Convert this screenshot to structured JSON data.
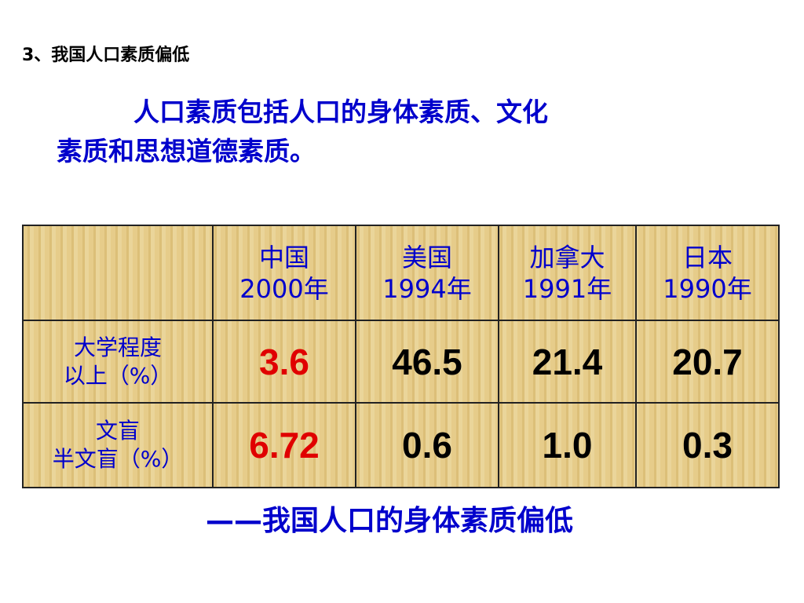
{
  "heading": "3、我国人口素质偏低",
  "paragraph": [
    "人口素质包括人口的身体素质、文化",
    "素质和思想道德素质。"
  ],
  "table": {
    "header": [
      [
        "中国",
        "2000年"
      ],
      [
        "美国",
        "1994年"
      ],
      [
        "加拿大",
        "1991年"
      ],
      [
        "日本",
        "1990年"
      ]
    ],
    "rows": [
      {
        "label": [
          "大学程度",
          "以上（%）"
        ],
        "values": [
          "3.6",
          "46.5",
          "21.4",
          "20.7"
        ]
      },
      {
        "label": [
          "文盲",
          "半文盲（%）"
        ],
        "values": [
          "6.72",
          "0.6",
          "1.0",
          "0.3"
        ]
      }
    ]
  },
  "conclusion": "——我国人口的身体素质偏低"
}
